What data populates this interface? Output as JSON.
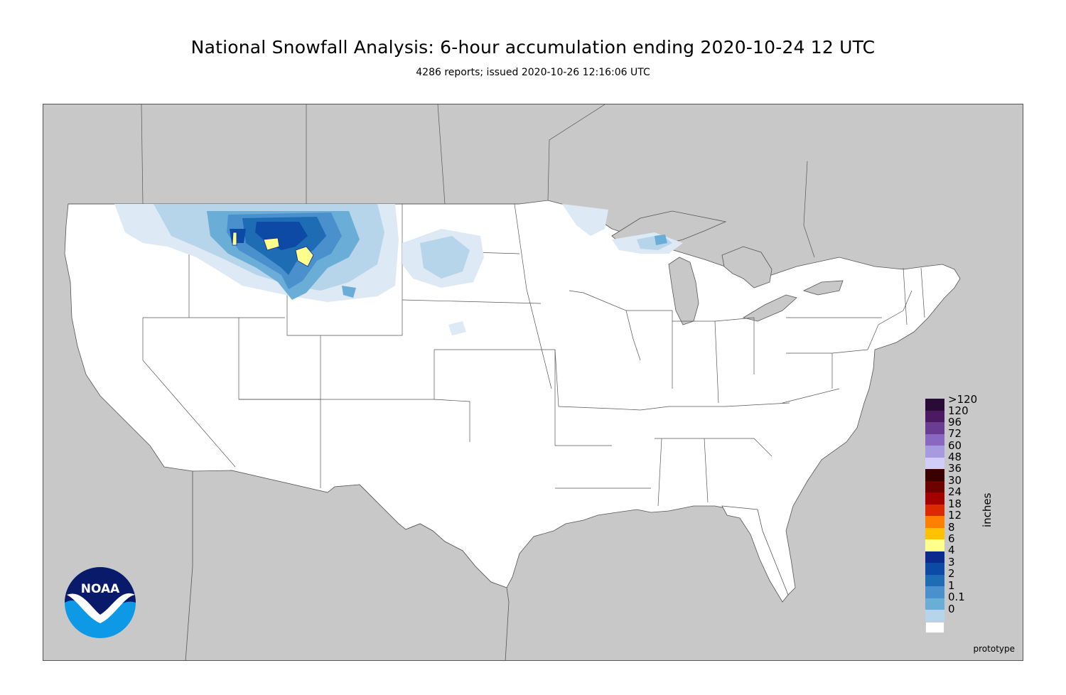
{
  "title": "National Snowfall Analysis: 6-hour accumulation ending 2020-10-24 12 UTC",
  "subtitle": "4286 reports; issued 2020-10-26 12:16:06 UTC",
  "units_label": "inches",
  "prototype_label": "prototype",
  "logo_text": "NOAA",
  "colors": {
    "ocean_and_outside": "#c8c8c8",
    "land": "#ffffff",
    "borders": "#555555"
  },
  "legend": {
    "items": [
      {
        "label": ">120",
        "color": "#2a0a36"
      },
      {
        "label": "120",
        "color": "#4b1a63"
      },
      {
        "label": "96",
        "color": "#6a3c92"
      },
      {
        "label": "72",
        "color": "#8a68c2"
      },
      {
        "label": "60",
        "color": "#a89ae0"
      },
      {
        "label": "48",
        "color": "#d0cdf8"
      },
      {
        "label": "36",
        "color": "#3a0000"
      },
      {
        "label": "30",
        "color": "#6e0000"
      },
      {
        "label": "24",
        "color": "#a50000"
      },
      {
        "label": "18",
        "color": "#dc2a00"
      },
      {
        "label": "12",
        "color": "#ff8000"
      },
      {
        "label": "8",
        "color": "#ffc200"
      },
      {
        "label": "6",
        "color": "#ffff8c"
      },
      {
        "label": "4",
        "color": "#0c2a8e"
      },
      {
        "label": "3",
        "color": "#0c4aa6"
      },
      {
        "label": "2",
        "color": "#1e6cb4"
      },
      {
        "label": "1",
        "color": "#4a90cc"
      },
      {
        "label": "0.1",
        "color": "#6aaed8"
      },
      {
        "label": "0",
        "color": "#b7d5ea"
      }
    ],
    "bottom_swatches": [
      "#dde9f4",
      "#ffffff"
    ]
  }
}
